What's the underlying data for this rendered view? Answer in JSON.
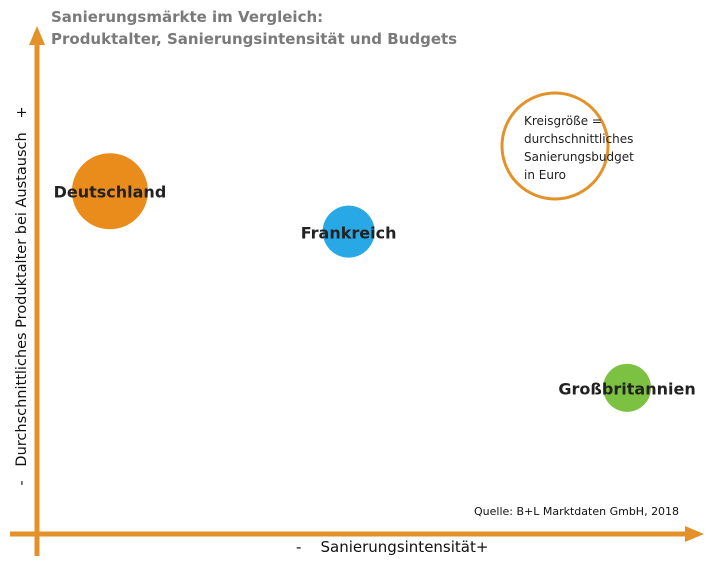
{
  "chart_data": {
    "type": "scatter",
    "title": "Sanierungsmärkte im Vergleich:",
    "subtitle": "Produktalter, Sanierungsintensität und Budgets",
    "xlabel": "Sanierungsintensität",
    "xlabel_minus": "-",
    "xlabel_plus": "+",
    "ylabel": "Durchschnittliches Produktalter bei Austausch",
    "ylabel_minus": "-",
    "ylabel_plus": "+",
    "xlim": [
      0,
      100
    ],
    "ylim": [
      0,
      100
    ],
    "grid": false,
    "axis_color": "#e3922a",
    "points": [
      {
        "name": "Deutschland",
        "x": 11,
        "y": 68,
        "size": 38,
        "color": "#ea8c1c"
      },
      {
        "name": "Frankreich",
        "x": 47,
        "y": 60,
        "size": 26,
        "color": "#29a8e6"
      },
      {
        "name": "Großbritannien",
        "x": 89,
        "y": 29,
        "size": 24,
        "color": "#7cc142"
      }
    ],
    "legend": {
      "lines": [
        "Kreisgröße =",
        "durchschnittliches",
        "Sanierungsbudget",
        "in Euro"
      ],
      "placement": "top-right",
      "stroke_color": "#e3922a"
    },
    "source": "Quelle: B+L Marktdaten GmbH, 2018"
  }
}
